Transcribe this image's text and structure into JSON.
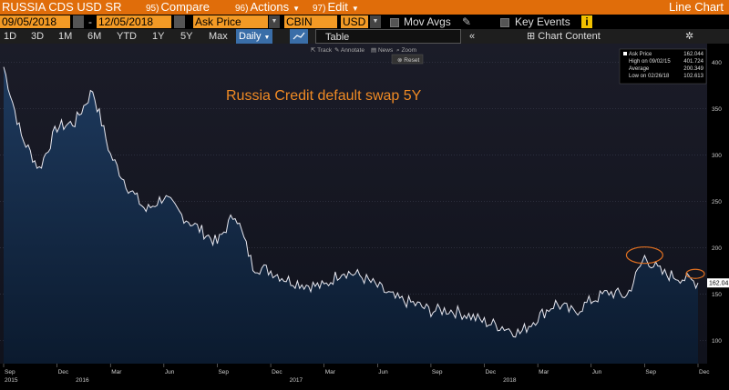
{
  "title_bar": {
    "ticker": "RUSSIA CDS USD SR",
    "compare_num": "95)",
    "compare_label": "Compare",
    "actions_num": "96)",
    "actions_label": "Actions",
    "edit_num": "97)",
    "edit_label": "Edit",
    "chart_type": "Line Chart"
  },
  "controls": {
    "start_date": "09/05/2018",
    "separator": "-",
    "end_date": "12/05/2018",
    "field": "Ask Price",
    "source": "CBIN",
    "currency": "USD",
    "mov_avgs": "Mov Avgs",
    "key_events": "Key Events"
  },
  "periods": {
    "items": [
      "1D",
      "3D",
      "1M",
      "6M",
      "YTD",
      "1Y",
      "5Y",
      "Max"
    ],
    "frequency": "Daily",
    "table": "Table",
    "chart_content": "Chart Content"
  },
  "toolbar": {
    "track": "Track",
    "annotate": "Annotate",
    "news": "News",
    "zoom": "Zoom",
    "reset": "Reset"
  },
  "legend": {
    "rows": [
      {
        "label": "Ask Price",
        "value": "162.044"
      },
      {
        "label": "High on 09/02/15",
        "value": "401.724"
      },
      {
        "label": "Average",
        "value": "200.349"
      },
      {
        "label": "Low on 02/26/18",
        "value": "102.613"
      }
    ]
  },
  "chart_data": {
    "type": "area",
    "annotation": "Russia Credit default swap 5Y",
    "ylim": [
      75,
      420
    ],
    "yticks": [
      100,
      150,
      200,
      250,
      300,
      350,
      400
    ],
    "last_value_label": "162.04",
    "x_months": [
      "Sep",
      "Dec",
      "Mar",
      "Jun",
      "Sep",
      "Dec",
      "Mar",
      "Jun",
      "Sep",
      "Dec",
      "Mar",
      "Jun",
      "Sep",
      "Dec"
    ],
    "x_years": [
      "2015",
      "2016",
      "2017",
      "2018"
    ],
    "x": [
      "2015-09",
      "2015-10",
      "2015-11",
      "2015-12",
      "2016-01",
      "2016-02",
      "2016-03",
      "2016-04",
      "2016-05",
      "2016-06",
      "2016-07",
      "2016-08",
      "2016-09",
      "2016-10",
      "2016-11",
      "2016-12",
      "2017-01",
      "2017-02",
      "2017-03",
      "2017-04",
      "2017-05",
      "2017-06",
      "2017-07",
      "2017-08",
      "2017-09",
      "2017-10",
      "2017-11",
      "2017-12",
      "2018-01",
      "2018-02",
      "2018-03",
      "2018-04",
      "2018-05",
      "2018-06",
      "2018-07",
      "2018-08",
      "2018-09",
      "2018-10",
      "2018-11",
      "2018-12"
    ],
    "series": [
      {
        "values": [
          395,
          320,
          285,
          330,
          335,
          370,
          300,
          265,
          240,
          255,
          235,
          220,
          205,
          238,
          180,
          175,
          165,
          160,
          158,
          175,
          170,
          158,
          145,
          140,
          132,
          133,
          128,
          120,
          115,
          108,
          125,
          140,
          130,
          143,
          152,
          148,
          190,
          172,
          168,
          162
        ]
      }
    ]
  }
}
